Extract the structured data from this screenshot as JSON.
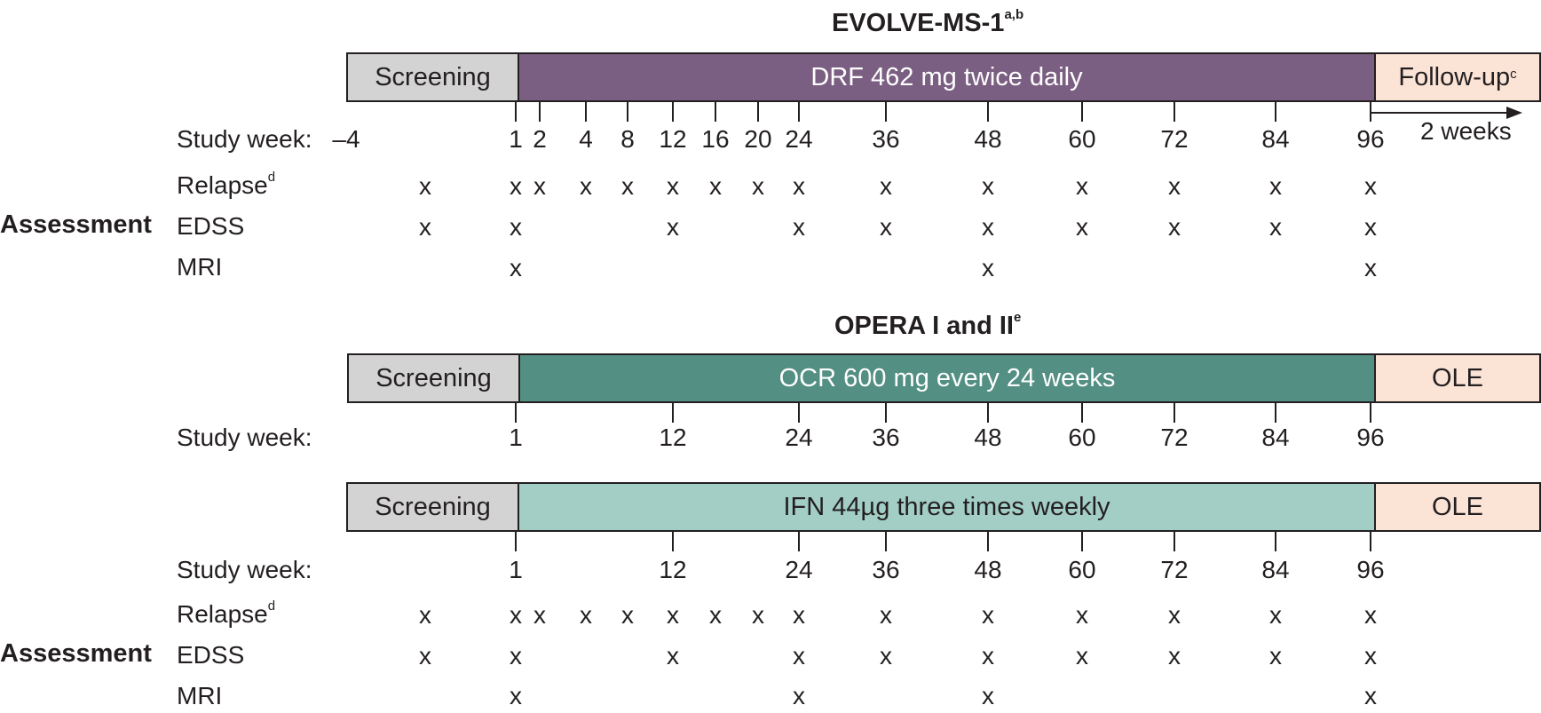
{
  "colors": {
    "screening": "#d4d3d3",
    "drf": "#7b5f82",
    "ocr": "#538f83",
    "ifn": "#a3cec6",
    "followup": "#fbe3d6"
  },
  "evolve": {
    "title": "EVOLVE-MS-1",
    "title_sup": "a,b",
    "bar": {
      "screening": "Screening",
      "treatment": "DRF 462 mg twice daily",
      "followup": "Follow-up",
      "followup_sup": "c"
    },
    "study_week_label": "Study week:",
    "weeks": [
      "–4",
      "1",
      "2",
      "4",
      "8",
      "12",
      "16",
      "20",
      "24",
      "36",
      "48",
      "60",
      "72",
      "84",
      "96"
    ],
    "arrow_label": "2 weeks",
    "assessment_label": "Assessment",
    "relapse_label": "Relapse",
    "relapse_sup": "d",
    "edss_label": "EDSS",
    "mri_label": "MRI",
    "mark": "x"
  },
  "opera": {
    "title": "OPERA I and II",
    "title_sup": "e",
    "bar1": {
      "screening": "Screening",
      "treatment": "OCR 600 mg every 24 weeks",
      "followup": "OLE"
    },
    "bar2": {
      "screening": "Screening",
      "treatment": "IFN 44µg three times weekly",
      "followup": "OLE"
    },
    "study_week_label": "Study week:",
    "weeks": [
      "1",
      "12",
      "24",
      "36",
      "48",
      "60",
      "72",
      "84",
      "96"
    ],
    "assessment_label": "Assessment",
    "relapse_label": "Relapse",
    "relapse_sup": "d",
    "edss_label": "EDSS",
    "mri_label": "MRI",
    "mark": "x"
  }
}
